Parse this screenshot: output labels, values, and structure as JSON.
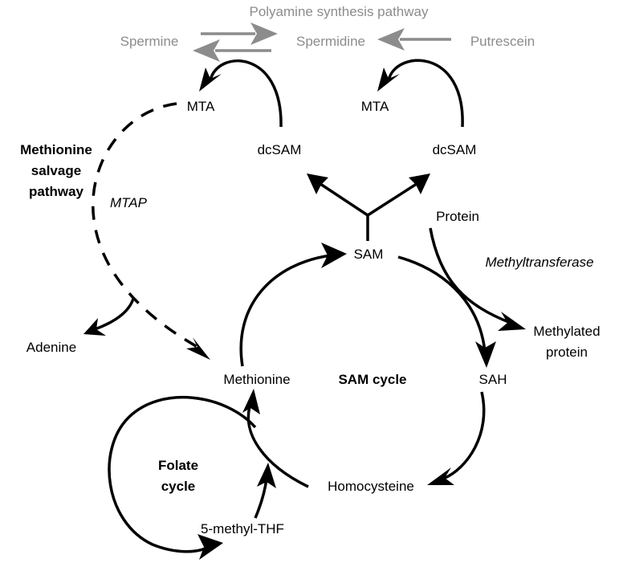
{
  "colors": {
    "primary": "#000000",
    "secondary": "#8c8c8c",
    "background": "#ffffff"
  },
  "polyamine": {
    "title": "Polyamine synthesis pathway",
    "spermine": "Spermine",
    "spermidine": "Spermidine",
    "putrescein": "Putrescein"
  },
  "nodes": {
    "mta_left": "MTA",
    "mta_right": "MTA",
    "dcsam_left": "dcSAM",
    "dcsam_right": "dcSAM",
    "protein": "Protein",
    "sam": "SAM",
    "methylated_protein_1": "Methylated",
    "methylated_protein_2": "protein",
    "sah": "SAH",
    "homocysteine": "Homocysteine",
    "methionine": "Methionine",
    "adenine": "Adenine",
    "methyl_thf": "5-methyl-THF"
  },
  "labels": {
    "salvage_1": "Methionine",
    "salvage_2": "salvage",
    "salvage_3": "pathway",
    "mtap": "MTAP",
    "methyltransferase": "Methyltransferase",
    "sam_cycle": "SAM cycle",
    "folate_1": "Folate",
    "folate_2": "cycle"
  }
}
